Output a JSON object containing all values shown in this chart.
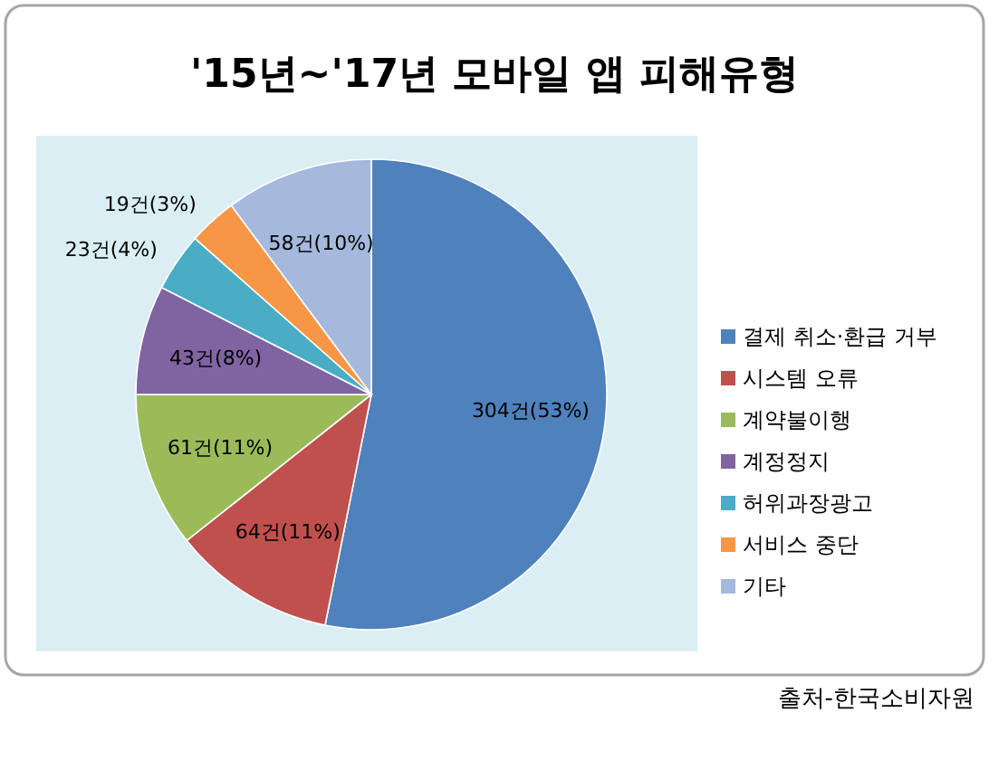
{
  "chart_data": {
    "type": "pie",
    "title": "'15년~'17년 모바일 앱 피해유형",
    "categories": [
      "결제 취소·환급 거부",
      "시스템 오류",
      "계약불이행",
      "계정정지",
      "허위과장광고",
      "서비스 중단",
      "기타"
    ],
    "values": [
      304,
      64,
      61,
      43,
      23,
      19,
      58
    ],
    "colors": [
      "#4f81bd",
      "#c0504d",
      "#9bbb59",
      "#8064a2",
      "#4bacc6",
      "#f79646",
      "#a5b9dd"
    ],
    "value_labels": [
      "304건(53%)",
      "64건(11%)",
      "61건(11%)",
      "43건(8%)",
      "23건(4%)",
      "19건(3%)",
      "58건(10%)"
    ],
    "legend": "right",
    "annotations": [
      "출처-한국소비자원"
    ]
  }
}
